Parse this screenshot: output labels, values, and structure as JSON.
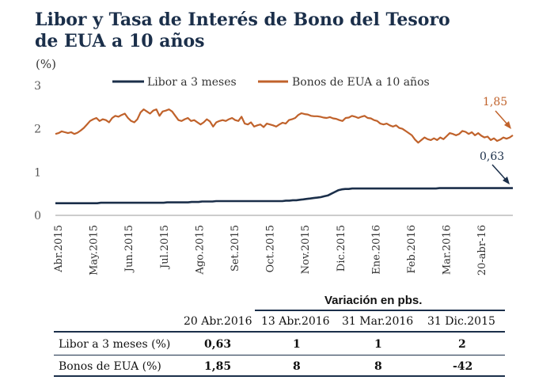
{
  "title_line1": "Libor y Tasa de Interés de Bono del Tesoro",
  "title_line2": "de EUA a 10 años",
  "unit": "(%)",
  "chart_data": {
    "type": "line",
    "ylim": [
      0,
      3
    ],
    "yticks": [
      "0",
      "1",
      "2",
      "3"
    ],
    "x_tick_labels": [
      "Abr.2015",
      "May.2015",
      "Jun.2015",
      "Jul.2015",
      "Ago.2015",
      "Set.2015",
      "Oct.2015",
      "Nov.2015",
      "Dic.2015",
      "Ene.2016",
      "Feb.2016",
      "Mar.2016",
      "20-abr-16"
    ],
    "legend_position": "top",
    "series": [
      {
        "name": "Libor a 3  meses",
        "color": "#1b2f4a",
        "values": [
          0.28,
          0.28,
          0.28,
          0.28,
          0.28,
          0.28,
          0.28,
          0.28,
          0.28,
          0.28,
          0.28,
          0.28,
          0.28,
          0.29,
          0.29,
          0.29,
          0.29,
          0.29,
          0.29,
          0.29,
          0.29,
          0.29,
          0.29,
          0.29,
          0.29,
          0.29,
          0.29,
          0.29,
          0.29,
          0.29,
          0.29,
          0.29,
          0.3,
          0.3,
          0.3,
          0.3,
          0.3,
          0.3,
          0.3,
          0.31,
          0.31,
          0.31,
          0.32,
          0.32,
          0.32,
          0.32,
          0.33,
          0.33,
          0.33,
          0.33,
          0.33,
          0.33,
          0.33,
          0.33,
          0.33,
          0.33,
          0.33,
          0.33,
          0.33,
          0.33,
          0.33,
          0.33,
          0.33,
          0.33,
          0.33,
          0.33,
          0.34,
          0.34,
          0.35,
          0.35,
          0.36,
          0.37,
          0.38,
          0.39,
          0.4,
          0.41,
          0.42,
          0.44,
          0.46,
          0.5,
          0.54,
          0.58,
          0.6,
          0.61,
          0.61,
          0.62,
          0.62,
          0.62,
          0.62,
          0.62,
          0.62,
          0.62,
          0.62,
          0.62,
          0.62,
          0.62,
          0.62,
          0.62,
          0.62,
          0.62,
          0.62,
          0.62,
          0.62,
          0.62,
          0.62,
          0.62,
          0.62,
          0.62,
          0.62,
          0.62,
          0.63,
          0.63,
          0.63,
          0.63,
          0.63,
          0.63,
          0.63,
          0.63,
          0.63,
          0.63,
          0.63,
          0.63,
          0.63,
          0.63,
          0.63,
          0.63,
          0.63,
          0.63,
          0.63,
          0.63,
          0.63,
          0.63
        ]
      },
      {
        "name": "Bonos de EUA a 10 años",
        "color": "#c0622b",
        "values": [
          1.88,
          1.9,
          1.94,
          1.92,
          1.9,
          1.92,
          1.88,
          1.91,
          1.96,
          2.02,
          2.1,
          2.18,
          2.22,
          2.25,
          2.18,
          2.22,
          2.2,
          2.15,
          2.25,
          2.3,
          2.28,
          2.32,
          2.35,
          2.25,
          2.18,
          2.15,
          2.22,
          2.38,
          2.45,
          2.4,
          2.35,
          2.42,
          2.45,
          2.3,
          2.4,
          2.42,
          2.45,
          2.4,
          2.3,
          2.2,
          2.18,
          2.22,
          2.25,
          2.18,
          2.2,
          2.15,
          2.1,
          2.15,
          2.22,
          2.17,
          2.05,
          2.15,
          2.18,
          2.2,
          2.18,
          2.22,
          2.25,
          2.2,
          2.18,
          2.28,
          2.12,
          2.1,
          2.15,
          2.05,
          2.08,
          2.1,
          2.04,
          2.12,
          2.1,
          2.08,
          2.05,
          2.1,
          2.14,
          2.12,
          2.2,
          2.22,
          2.25,
          2.32,
          2.36,
          2.34,
          2.33,
          2.3,
          2.29,
          2.29,
          2.28,
          2.26,
          2.25,
          2.27,
          2.24,
          2.23,
          2.2,
          2.18,
          2.25,
          2.26,
          2.3,
          2.28,
          2.25,
          2.28,
          2.3,
          2.25,
          2.24,
          2.2,
          2.18,
          2.12,
          2.1,
          2.12,
          2.08,
          2.05,
          2.08,
          2.02,
          2.0,
          1.95,
          1.9,
          1.85,
          1.75,
          1.68,
          1.74,
          1.8,
          1.76,
          1.74,
          1.78,
          1.74,
          1.8,
          1.76,
          1.83,
          1.9,
          1.88,
          1.85,
          1.88,
          1.95,
          1.93,
          1.88,
          1.92,
          1.85,
          1.9,
          1.84,
          1.8,
          1.82,
          1.74,
          1.78,
          1.72,
          1.75,
          1.8,
          1.77,
          1.8,
          1.85
        ]
      }
    ],
    "annotations": [
      "1,85",
      "0,63"
    ]
  },
  "table": {
    "variation_header": "Variación en pbs.",
    "columns": [
      "20 Abr.2016",
      "13 Abr.2016",
      "31 Mar.2016",
      "31 Dic.2015"
    ],
    "rows": [
      {
        "label": "Libor a 3 meses (%)",
        "cells": [
          "0,63",
          "1",
          "1",
          "2"
        ]
      },
      {
        "label": "Bonos de EUA (%)",
        "cells": [
          "1,85",
          "8",
          "8",
          "-42"
        ]
      }
    ]
  }
}
